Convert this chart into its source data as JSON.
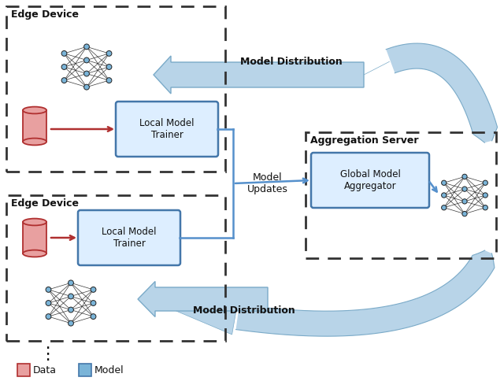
{
  "background_color": "#ffffff",
  "dashed_box_color": "#333333",
  "arrow_color": "#b8d4e8",
  "arrow_edge_color": "#7aaac8",
  "thin_arrow_color": "#5590cc",
  "text_color": "#111111",
  "box_face_color": "#ddeeff",
  "box_edge_color": "#4477aa",
  "data_cyl_face": "#e8a0a0",
  "data_cyl_edge": "#b03030",
  "node_color": "#7ab4d8",
  "nn_edge_color": "#222222",
  "labels": {
    "edge_device": "Edge Device",
    "agg_server": "Aggregation Server",
    "local_trainer": "Local Model\nTrainer",
    "global_agg": "Global Model\nAggregator",
    "model_dist": "Model Distribution",
    "model_updates": "Model\nUpdates",
    "data_legend": "Data",
    "model_legend": "Model"
  }
}
